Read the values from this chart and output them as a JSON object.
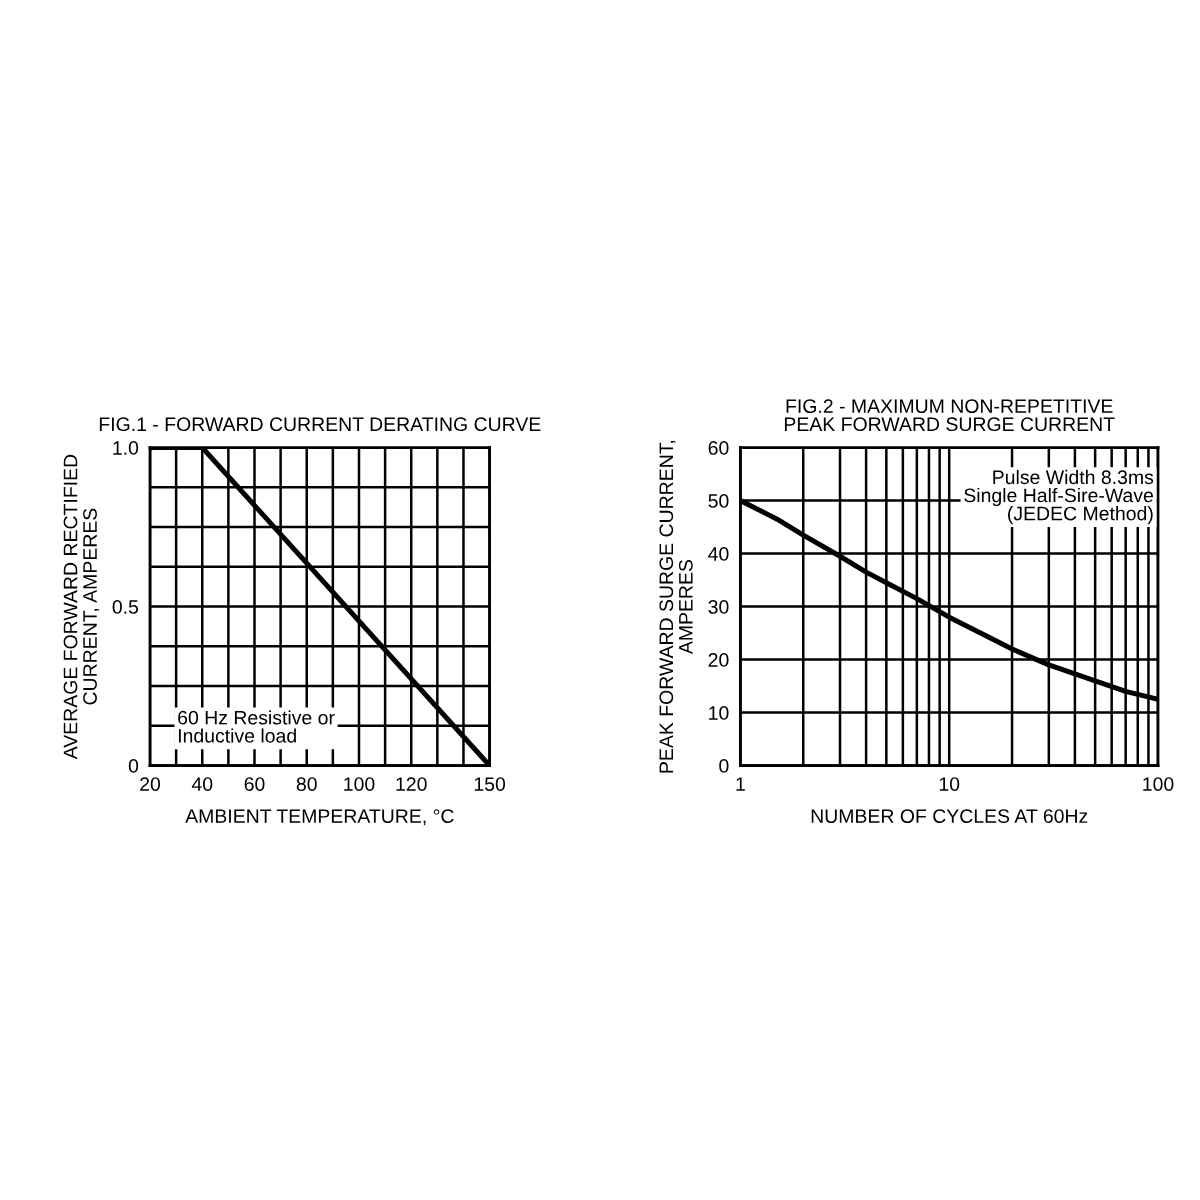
{
  "chart_data": [
    {
      "type": "line",
      "title": "FIG.1 - FORWARD CURRENT DERATING CURVE",
      "xlabel": "AMBIENT TEMPERATURE, °C",
      "ylabel": "AVERAGE FORWARD RECTIFIED\nCURRENT, AMPERES",
      "x": [
        20,
        40,
        150
      ],
      "values": [
        1.0,
        1.0,
        0
      ],
      "color": "#000000",
      "xlim": [
        20,
        150
      ],
      "ylim": [
        0,
        1.0
      ],
      "xticks": [
        20,
        {
          "value": 30,
          "label": null
        },
        40,
        {
          "value": 50,
          "label": null
        },
        60,
        {
          "value": 70,
          "label": null
        },
        80,
        {
          "value": 90,
          "label": null
        },
        100,
        {
          "value": 110,
          "label": null
        },
        120,
        {
          "value": 130,
          "label": null
        },
        {
          "value": 140,
          "label": null
        },
        150
      ],
      "yticks": [
        0,
        {
          "value": 0.125,
          "label": null
        },
        {
          "value": 0.25,
          "label": null
        },
        {
          "value": 0.375,
          "label": null
        },
        0.5,
        {
          "value": 0.625,
          "label": null
        },
        {
          "value": 0.75,
          "label": null
        },
        {
          "value": 0.875,
          "label": null
        },
        {
          "value": 1.0,
          "label": "1.0"
        }
      ],
      "grid": true,
      "annotations": [
        "60 Hz Resistive or\nInductive load"
      ]
    },
    {
      "type": "line",
      "title": "FIG.2 - MAXIMUM NON-REPETITIVE\nPEAK FORWARD SURGE CURRENT",
      "xlabel": "NUMBER OF CYCLES AT 60Hz",
      "ylabel": "PEAK FORWARD SURGE CURRENT,\nAMPERES",
      "log": "x",
      "x": [
        1,
        1.5,
        2,
        3,
        4,
        5,
        7,
        10,
        15,
        20,
        30,
        50,
        70,
        100
      ],
      "values": [
        50,
        46.5,
        43.5,
        39.5,
        36.5,
        34.5,
        31.5,
        28,
        24.5,
        22,
        19,
        16,
        14,
        12.5
      ],
      "color": "#000000",
      "xlim": [
        1,
        100
      ],
      "ylim": [
        0,
        60
      ],
      "xticks": [
        1,
        {
          "value": 2,
          "label": null
        },
        {
          "value": 3,
          "label": null
        },
        {
          "value": 4,
          "label": null
        },
        {
          "value": 5,
          "label": null
        },
        {
          "value": 6,
          "label": null
        },
        {
          "value": 7,
          "label": null
        },
        {
          "value": 8,
          "label": null
        },
        {
          "value": 9,
          "label": null
        },
        10,
        {
          "value": 20,
          "label": null
        },
        {
          "value": 30,
          "label": null
        },
        {
          "value": 40,
          "label": null
        },
        {
          "value": 50,
          "label": null
        },
        {
          "value": 60,
          "label": null
        },
        {
          "value": 70,
          "label": null
        },
        {
          "value": 80,
          "label": null
        },
        {
          "value": 90,
          "label": null
        },
        100
      ],
      "yticks": [
        0,
        10,
        20,
        30,
        40,
        50,
        60
      ],
      "grid": true,
      "annotations": [
        "Pulse Width 8.3ms\nSingle Half-Sire-Wave\n(JEDEC Method)"
      ]
    }
  ]
}
